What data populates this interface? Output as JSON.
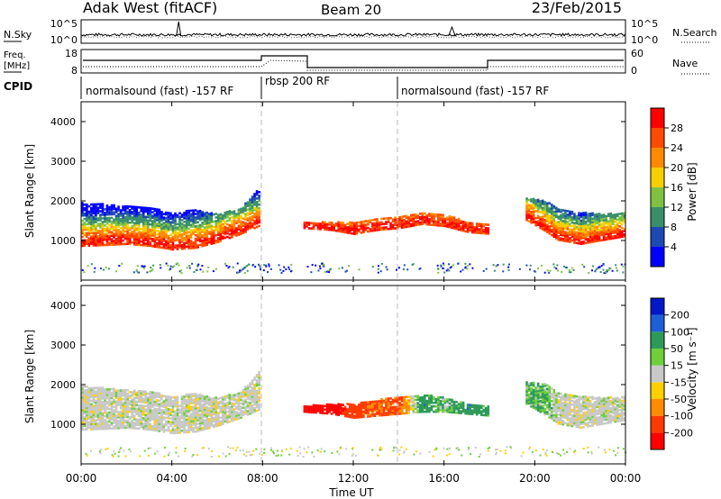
{
  "header": {
    "station": "Adak West (fitACF)",
    "beam": "Beam 20",
    "date": "23/Feb/2015"
  },
  "noise_panel": {
    "left_label": "N.Sky",
    "right_label": "N.Search",
    "left_ticks": [
      "10^5",
      "10^0"
    ],
    "right_ticks": [
      "10^5",
      "10^0"
    ]
  },
  "freq_panel": {
    "left_label_1": "Freq.",
    "left_label_2": "[MHz]",
    "right_label": "Nave",
    "left_ticks": [
      "18",
      "8"
    ],
    "right_ticks": [
      "60",
      "0"
    ]
  },
  "cpid_panel": {
    "label": "CPID",
    "segments": [
      {
        "label": "normalsound (fast) -157 RF",
        "start_hour": 0,
        "end_hour": 8
      },
      {
        "label": "rbsp 200 RF",
        "start_hour": 8,
        "end_hour": 14
      },
      {
        "label": "normalsound (fast) -157 RF",
        "start_hour": 14,
        "end_hour": 24
      }
    ]
  },
  "x_axis": {
    "label": "Time UT",
    "ticks": [
      "00:00",
      "04:00",
      "08:00",
      "12:00",
      "16:00",
      "20:00",
      "00:00"
    ]
  },
  "power_panel": {
    "ylabel": "Slant Range [km]",
    "yticks": [
      "4000",
      "3000",
      "2000",
      "1000"
    ],
    "colorbar_label": "Power [dB]",
    "colorbar_ticks": [
      "28",
      "24",
      "20",
      "16",
      "12",
      "8",
      "4"
    ],
    "colors": [
      "#0000ff",
      "#1c49b3",
      "#3a8f6a",
      "#7fc241",
      "#f5cf00",
      "#ff8a00",
      "#ff4a00",
      "#ff0000"
    ]
  },
  "velocity_panel": {
    "ylabel": "Slant Range [km]",
    "yticks": [
      "4000",
      "3000",
      "2000",
      "1000"
    ],
    "colorbar_label": "Velocity [m s⁻¹]",
    "colorbar_ticks": [
      "200",
      "100",
      "50",
      "15",
      "-15",
      "-50",
      "-100",
      "-200"
    ],
    "colors": [
      "#0018c8",
      "#1f5fd6",
      "#2e9a5a",
      "#6ecf3a",
      "#c8c8c8",
      "#ffd000",
      "#ff8c00",
      "#ff3a00",
      "#ff0000"
    ]
  },
  "chart_data": {
    "type": "heatmap",
    "x_unit": "hours UT",
    "xlim": [
      0,
      24
    ],
    "ylim": [
      0,
      4500
    ],
    "power_bands": [
      {
        "x": [
          0,
          1,
          2,
          3,
          4,
          5,
          6,
          7,
          7.8
        ],
        "y_low": [
          850,
          870,
          900,
          850,
          760,
          800,
          950,
          1150,
          1350
        ],
        "y_high": [
          1950,
          1900,
          1850,
          1800,
          1700,
          1750,
          1650,
          1800,
          2300
        ],
        "core": [
          950,
          980,
          1000,
          950,
          850,
          900,
          1050,
          1250,
          1450
        ]
      },
      {
        "x": [
          9.8,
          11,
          12,
          13,
          14,
          15,
          16,
          17,
          18
        ],
        "y_low": [
          1300,
          1250,
          1150,
          1250,
          1300,
          1400,
          1350,
          1200,
          1150
        ],
        "y_high": [
          1450,
          1450,
          1450,
          1550,
          1600,
          1700,
          1650,
          1450,
          1400
        ],
        "core": [
          1350,
          1300,
          1250,
          1350,
          1400,
          1500,
          1450,
          1300,
          1250
        ]
      },
      {
        "x": [
          19.6,
          20.5,
          21,
          22,
          23,
          24
        ],
        "y_low": [
          1500,
          1200,
          1000,
          900,
          1000,
          1100
        ],
        "y_high": [
          2050,
          2000,
          1800,
          1700,
          1650,
          1700
        ],
        "core": [
          1600,
          1300,
          1100,
          950,
          1050,
          1150
        ]
      }
    ],
    "velocity_bands": [
      {
        "x": [
          0,
          1,
          2,
          3,
          4,
          5,
          6,
          7,
          7.8
        ],
        "y_low": [
          850,
          870,
          900,
          850,
          760,
          800,
          950,
          1150,
          1350
        ],
        "y_high": [
          1950,
          1900,
          1850,
          1800,
          1700,
          1750,
          1650,
          1800,
          2300
        ],
        "v": [
          0,
          0,
          0,
          0,
          0,
          0,
          0,
          0,
          0
        ]
      },
      {
        "x": [
          9.8,
          11,
          12,
          13,
          14,
          15,
          16,
          17,
          18
        ],
        "y_low": [
          1300,
          1250,
          1150,
          1200,
          1250,
          1300,
          1300,
          1250,
          1200
        ],
        "y_high": [
          1450,
          1500,
          1500,
          1600,
          1700,
          1750,
          1650,
          1500,
          1450
        ],
        "v": [
          -200,
          -200,
          -100,
          -70,
          -90,
          60,
          20,
          60,
          40
        ]
      },
      {
        "x": [
          19.6,
          20.5,
          21,
          22,
          23,
          24
        ],
        "y_low": [
          1500,
          1200,
          1000,
          900,
          1000,
          1100
        ],
        "y_high": [
          2050,
          2000,
          1800,
          1700,
          1650,
          1700
        ],
        "v": [
          30,
          30,
          0,
          0,
          0,
          0
        ]
      }
    ]
  }
}
